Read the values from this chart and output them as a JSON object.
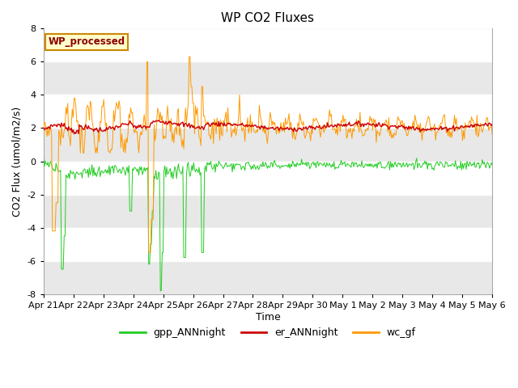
{
  "title": "WP CO2 Fluxes",
  "xlabel": "Time",
  "ylabel": "CO2 Flux (umol/m2/s)",
  "ylim": [
    -8,
    8
  ],
  "yticks": [
    -8,
    -6,
    -4,
    -2,
    0,
    2,
    4,
    6,
    8
  ],
  "n_points": 500,
  "colors": {
    "gpp": "#22cc22",
    "er": "#cc0000",
    "wc": "#ff9900"
  },
  "legend_label": "WP_processed",
  "legend_label_color": "#8B0000",
  "legend_box_facecolor": "#ffffcc",
  "legend_box_edgecolor": "#cc8800",
  "plot_bg_color": "#f0f0f0",
  "band_color": "#e8e8e8",
  "xtick_labels": [
    "Apr 21",
    "Apr 22",
    "Apr 23",
    "Apr 24",
    "Apr 25",
    "Apr 26",
    "Apr 27",
    "Apr 28",
    "Apr 29",
    "Apr 30",
    "May 1",
    "May 2",
    "May 3",
    "May 4",
    "May 5",
    "May 6"
  ]
}
